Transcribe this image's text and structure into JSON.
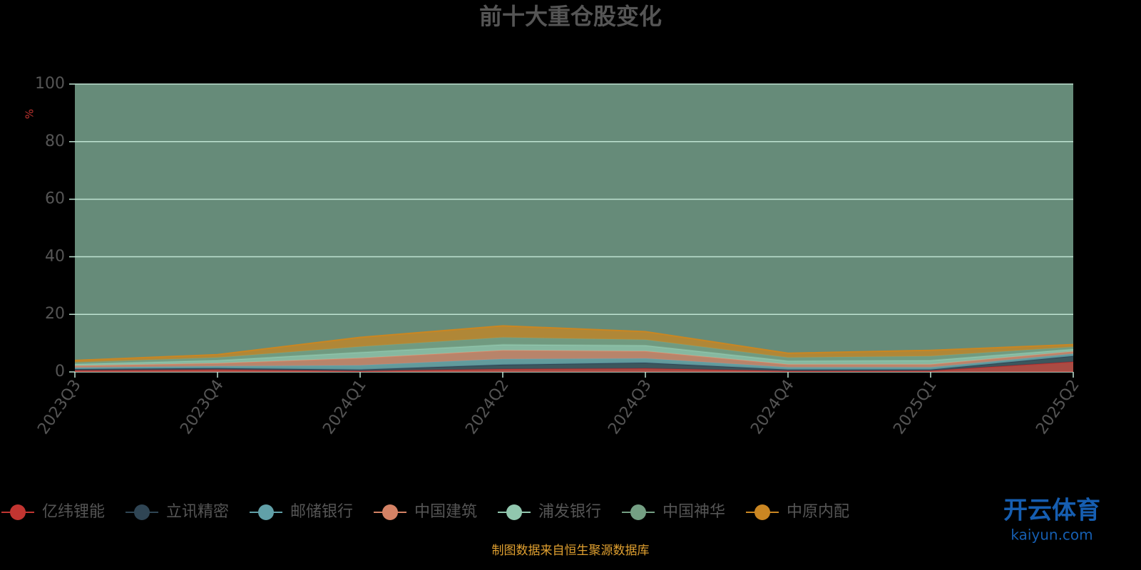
{
  "chart_data": {
    "type": "stacked-area",
    "title": "前十大重仓股变化",
    "y_label": "%",
    "categories": [
      "2023Q3",
      "2023Q4",
      "2024Q1",
      "2024Q2",
      "2024Q3",
      "2024Q4",
      "2025Q1",
      "2025Q2"
    ],
    "ylim": [
      0,
      100
    ],
    "yticks": [
      0,
      20,
      40,
      60,
      80,
      100
    ],
    "grid": true,
    "plot_background": "#668b79",
    "series": [
      {
        "name": "亿纬锂能",
        "color": "#c23531",
        "values": [
          0.5,
          0.8,
          0.3,
          1.0,
          1.2,
          0.3,
          0.4,
          3.5
        ]
      },
      {
        "name": "立讯精密",
        "color": "#2f4554",
        "values": [
          0.5,
          0.5,
          0.5,
          1.5,
          2.0,
          0.5,
          0.4,
          2.0
        ]
      },
      {
        "name": "邮储银行",
        "color": "#61a0a8",
        "values": [
          0.5,
          0.7,
          1.5,
          2.0,
          1.5,
          0.8,
          0.8,
          0.8
        ]
      },
      {
        "name": "中国建筑",
        "color": "#d48265",
        "values": [
          0.6,
          1.0,
          2.5,
          3.0,
          2.5,
          1.0,
          1.0,
          0.8
        ]
      },
      {
        "name": "浦发银行",
        "color": "#91c7ae",
        "values": [
          0.6,
          1.0,
          2.0,
          2.0,
          2.0,
          1.2,
          1.4,
          0.8
        ]
      },
      {
        "name": "中国神华",
        "color": "#749f83",
        "values": [
          0.6,
          1.0,
          2.0,
          2.5,
          2.0,
          1.2,
          1.5,
          0.8
        ]
      },
      {
        "name": "中原内配",
        "color": "#ca8622",
        "values": [
          0.7,
          1.0,
          3.2,
          4.0,
          2.8,
          1.5,
          2.0,
          0.8
        ]
      }
    ],
    "source": "制图数据来自恒生聚源数据库"
  },
  "watermark": {
    "brand": "开云体育",
    "url": "kaiyun.com"
  }
}
